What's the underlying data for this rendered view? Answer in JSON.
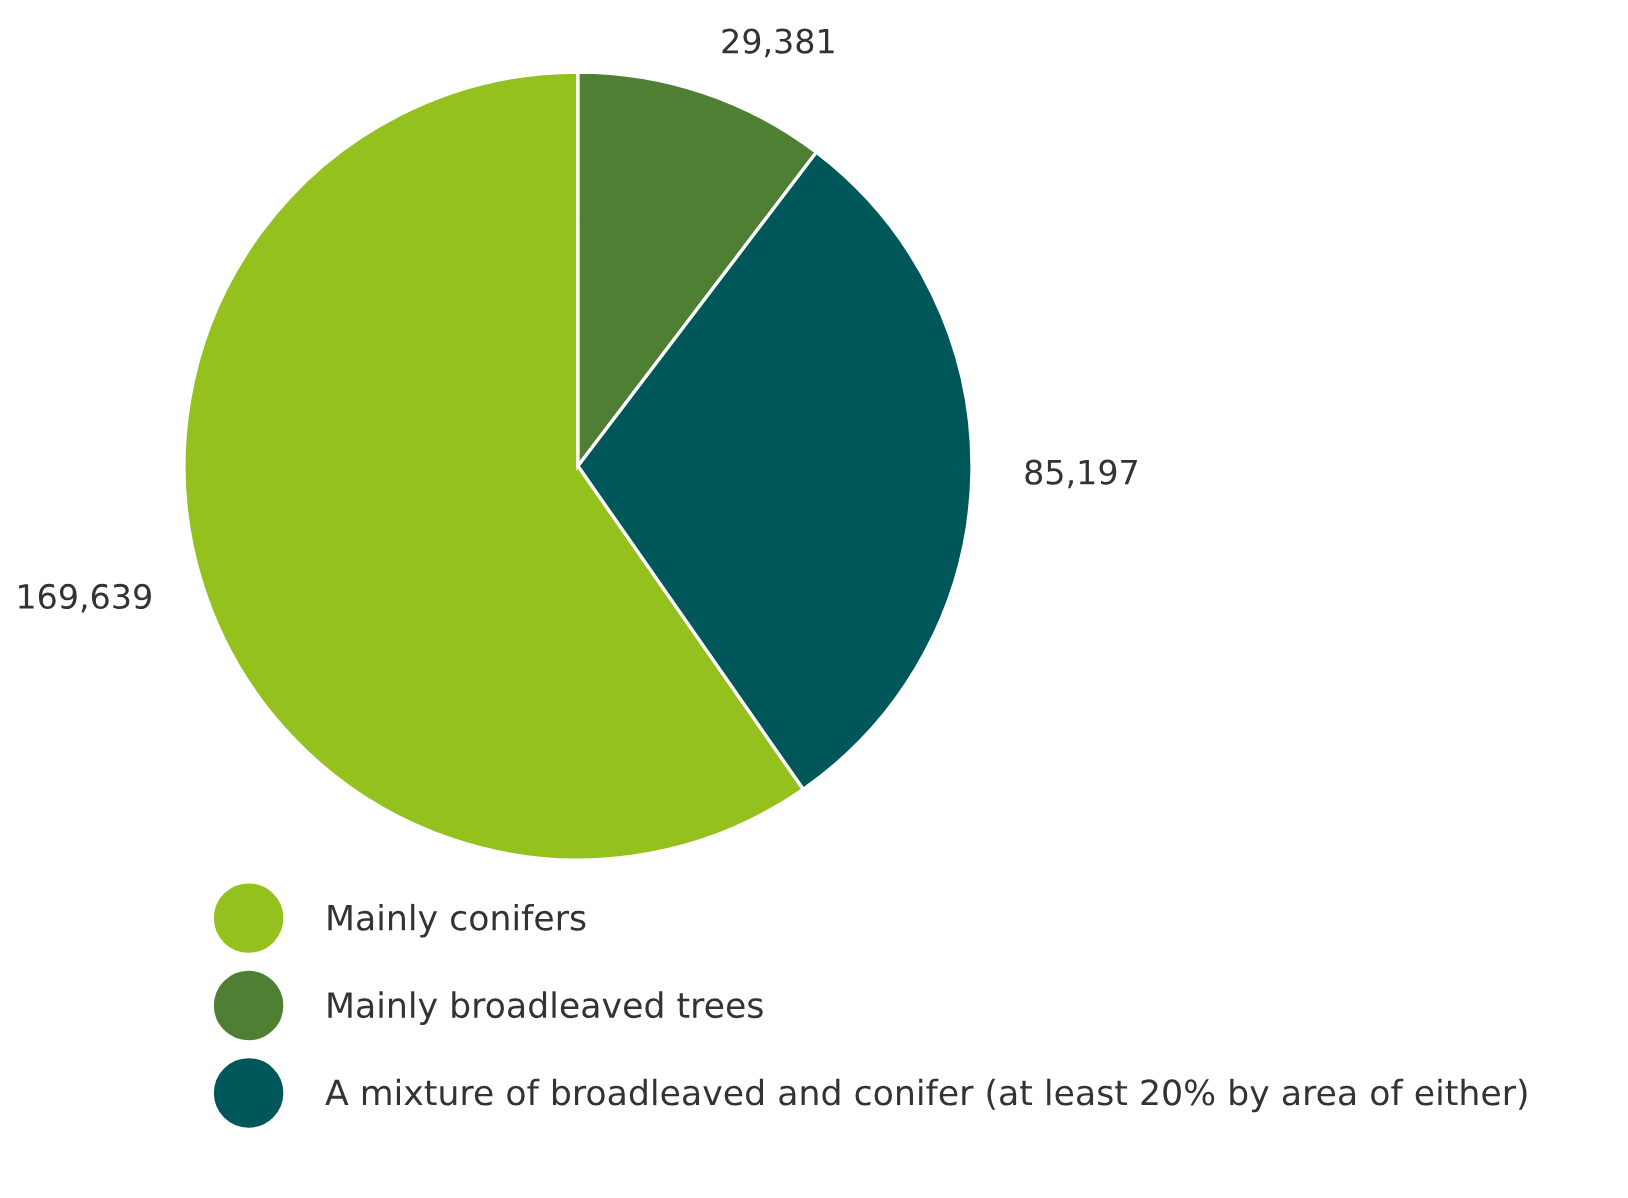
{
  "chart_data": {
    "type": "pie",
    "categories": [
      "Mainly conifers",
      "Mainly broadleaved trees",
      "A mixture of broadleaved and conifer (at least 20% by area of either)"
    ],
    "values": [
      169639,
      29381,
      85197
    ],
    "colors": [
      "#95c11f",
      "#4e7f32",
      "#00575a"
    ],
    "value_labels": [
      "169,639",
      "29,381",
      "85,197"
    ],
    "legend": "bottom"
  }
}
